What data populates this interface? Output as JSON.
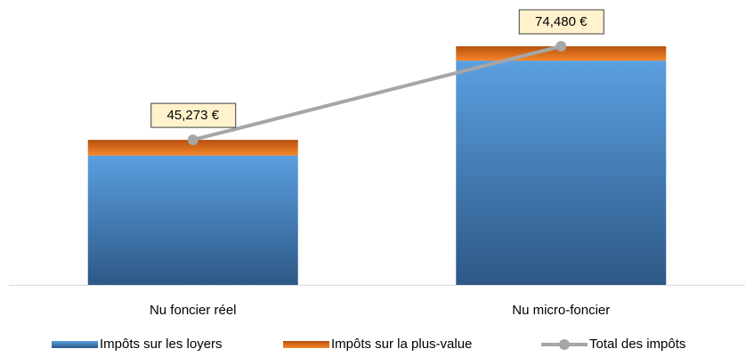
{
  "chart_data": {
    "type": "bar",
    "stacked": true,
    "categories": [
      "Nu foncier réel",
      "Nu micro-foncier"
    ],
    "series": [
      {
        "name": "Impôts sur les loyers",
        "color": "#4a8fd6",
        "values": [
          40400,
          70000
        ]
      },
      {
        "name": "Impôts sur la plus-value",
        "color": "#e8721c",
        "values": [
          4873,
          4480
        ]
      },
      {
        "name": "Total des impôts",
        "type": "line",
        "color": "#a6a6a6",
        "values": [
          45273,
          74480
        ],
        "value_labels": [
          "45,273 €",
          "74,480 €"
        ]
      }
    ],
    "legend": "bottom"
  }
}
